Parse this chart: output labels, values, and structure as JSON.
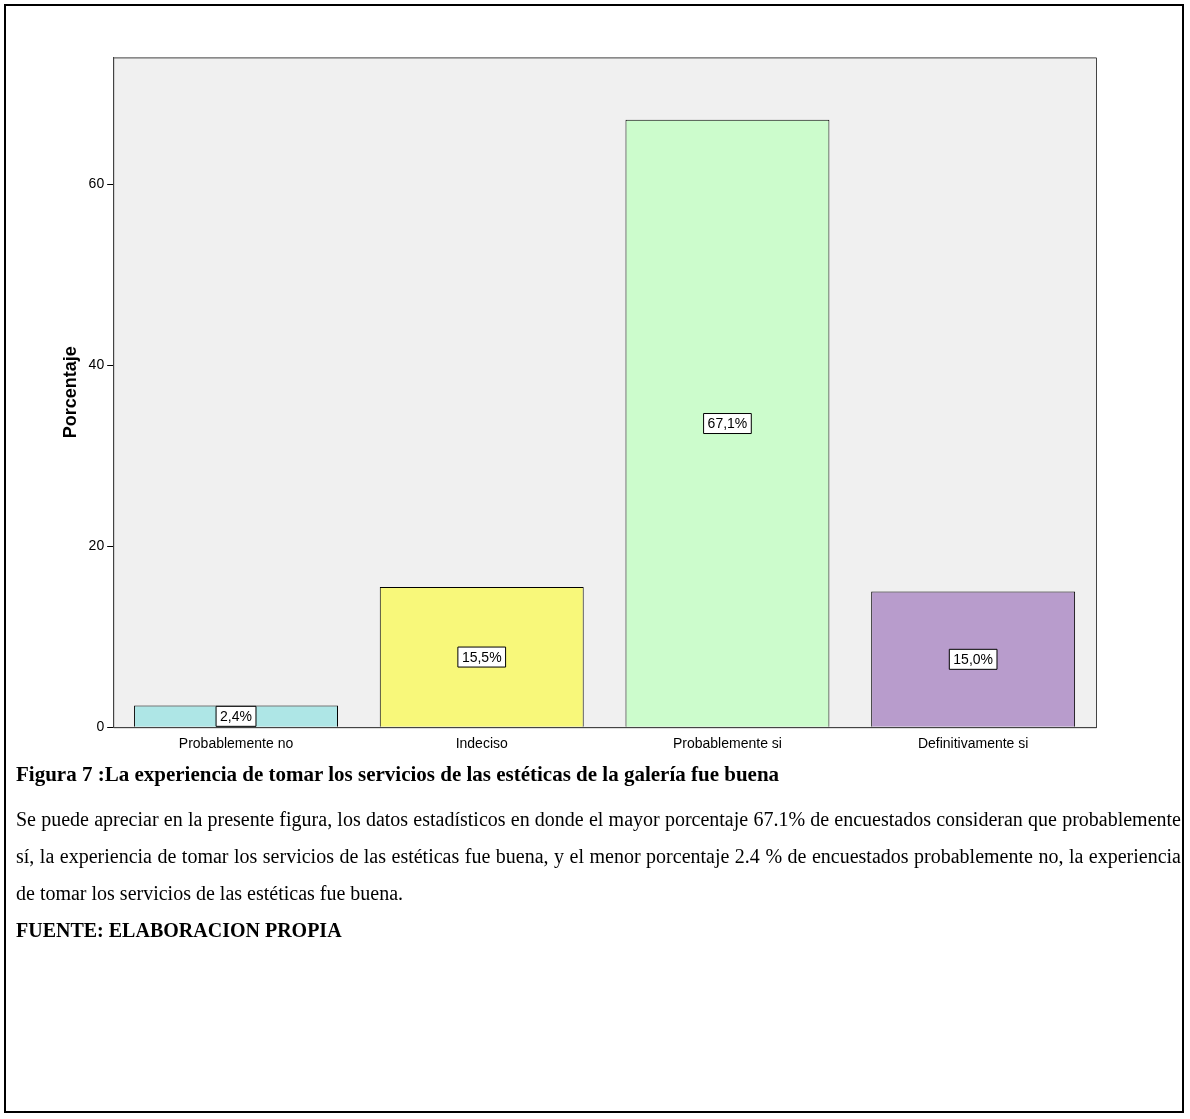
{
  "chart_data": {
    "type": "bar",
    "title": "Figura  7 :La experiencia de tomar los servicios de las estéticas de la galería fue buena",
    "ylabel": "Porcentaje",
    "categories": [
      "Probablemente no",
      "Indeciso",
      "Probablemente si",
      "Definitivamente si"
    ],
    "values": [
      2.4,
      15.5,
      67.1,
      15.0
    ],
    "colors": [
      "#aee6e6",
      "#f8f87a",
      "#ccfccc",
      "#b89ccc"
    ],
    "value_labels": [
      "2,4%",
      "15,5%",
      "67,1%",
      "15,0%"
    ],
    "ylim": [
      0,
      74
    ],
    "yticks": [
      0,
      20,
      40,
      60
    ],
    "grid": false,
    "legend": false,
    "annotations": [
      "Se puede apreciar en la presente figura, los datos estadísticos en donde el mayor porcentaje 67.1% de encuestados consideran que probablemente sí, la experiencia de tomar los servicios de las estéticas fue buena, y el menor porcentaje 2.4 % de encuestados probablemente no, la experiencia de tomar los servicios de las estéticas fue buena.",
      "FUENTE: ELABORACION PROPIA"
    ]
  }
}
